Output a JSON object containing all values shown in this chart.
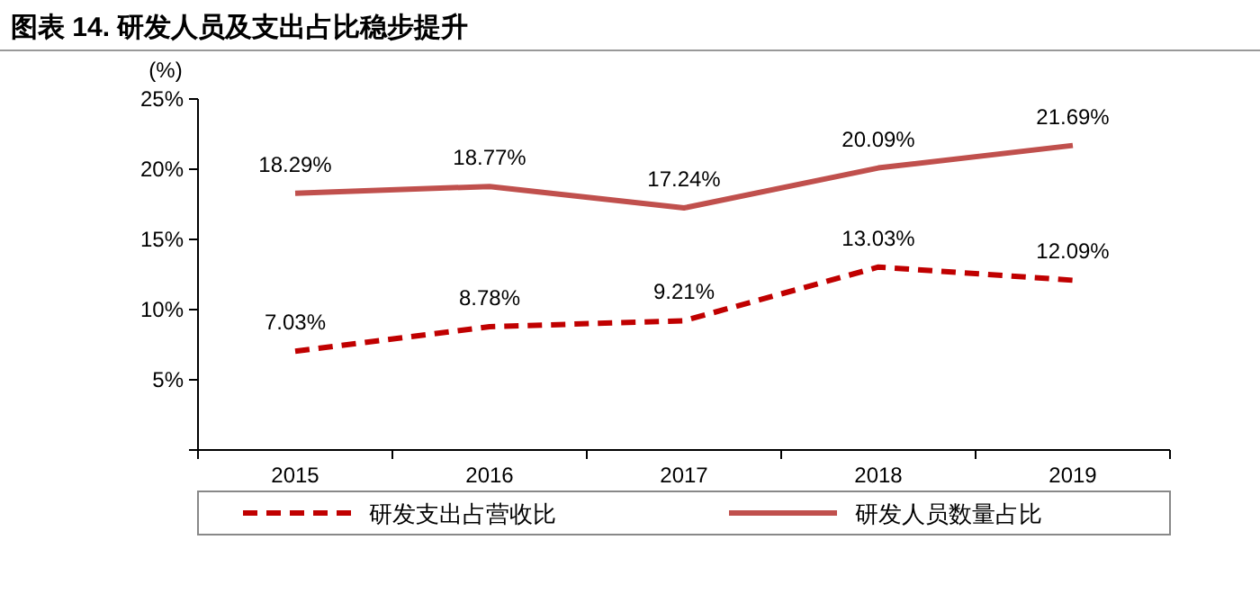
{
  "chart_data": {
    "type": "line",
    "title": "图表 14. 研发人员及支出占比稳步提升",
    "ylabel": "(%)",
    "categories": [
      "2015",
      "2016",
      "2017",
      "2018",
      "2019"
    ],
    "series": [
      {
        "name": "研发支出占营收比",
        "color": "#c00000",
        "line_style": "dashed",
        "values": [
          7.03,
          8.78,
          9.21,
          13.03,
          12.09
        ],
        "value_labels": [
          "7.03%",
          "8.78%",
          "9.21%",
          "13.03%",
          "12.09%"
        ]
      },
      {
        "name": "研发人员数量占比",
        "color": "#c0504d",
        "line_style": "solid",
        "values": [
          18.29,
          18.77,
          17.24,
          20.09,
          21.69
        ],
        "value_labels": [
          "18.29%",
          "18.77%",
          "17.24%",
          "20.09%",
          "21.69%"
        ]
      }
    ],
    "ylim": [
      0,
      25
    ],
    "yticks": [
      {
        "value": 0,
        "label": null
      },
      {
        "value": 5,
        "label": "5%"
      },
      {
        "value": 10,
        "label": "10%"
      },
      {
        "value": 15,
        "label": "15%"
      },
      {
        "value": 20,
        "label": "20%"
      },
      {
        "value": 25,
        "label": "25%"
      }
    ],
    "legend": "bottom",
    "marker": "none"
  }
}
